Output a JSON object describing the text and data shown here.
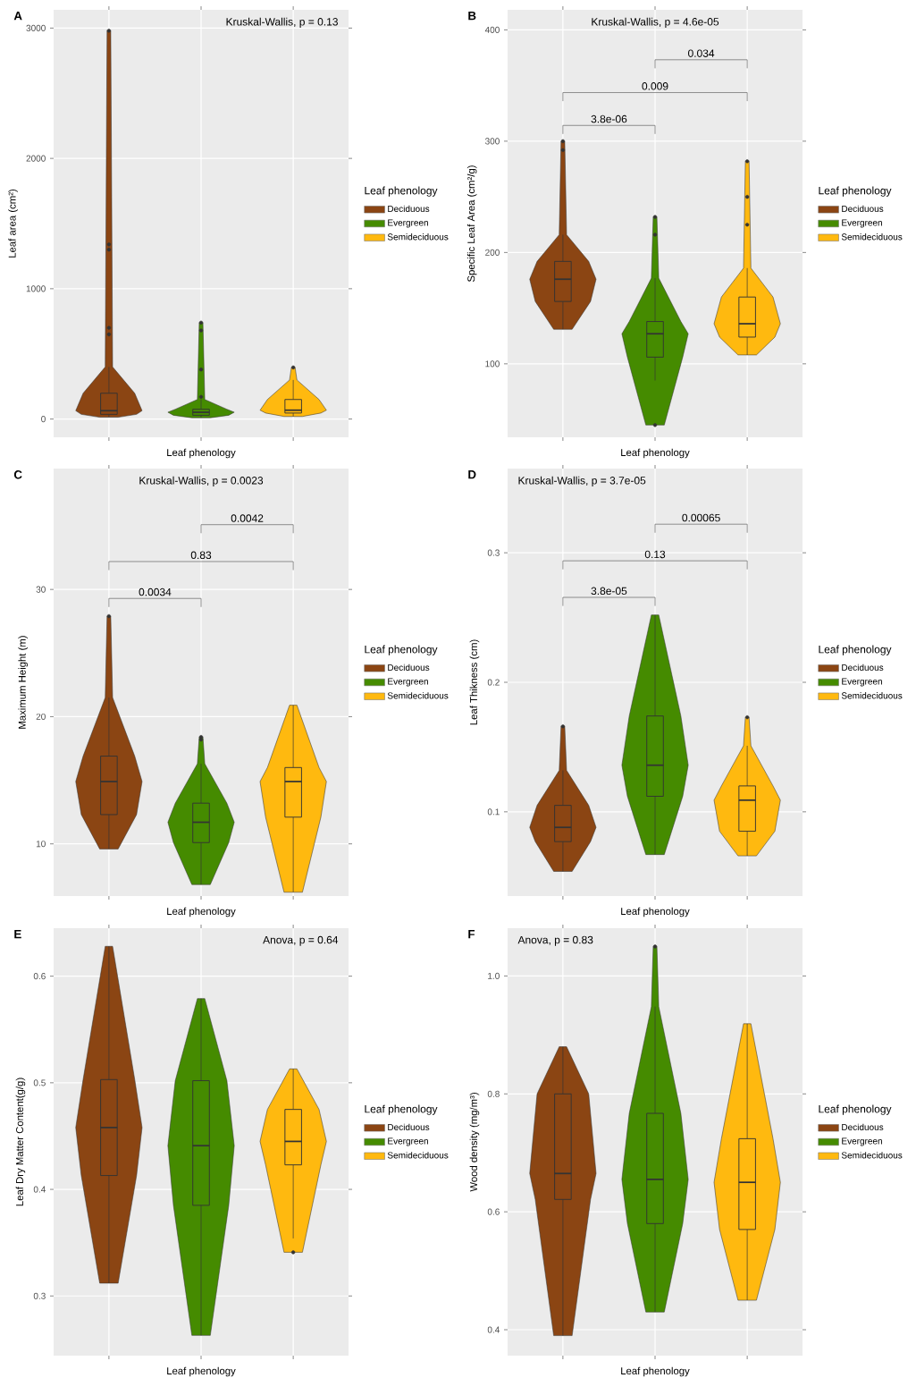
{
  "chart_data": [
    {
      "type": "box",
      "title": "A",
      "xlabel": "Leaf phenology",
      "ylabel": "Leaf area (cm²)",
      "categories": [
        null,
        null,
        null
      ],
      "legend": "right",
      "legend_title": "Leaf phenology",
      "grid": true,
      "tick_labels": "y",
      "ylim": [
        -140,
        3140
      ],
      "yticks": [
        0,
        1000,
        2000,
        3000
      ],
      "series": [
        {
          "name": "Deciduous",
          "color": "#8B4513",
          "boxes": [
            {
              "low": 14,
              "q1": 36,
              "median": 64,
              "q3": 198,
              "high": 400,
              "outliers": [
                650,
                700,
                1300,
                1340,
                2980
              ]
            },
            null,
            null
          ]
        },
        {
          "name": "Evergreen",
          "color": "#458B00",
          "boxes": [
            null,
            {
              "low": 10,
              "q1": 29,
              "median": 52,
              "q3": 75,
              "high": 150,
              "outliers": [
                170,
                380,
                680,
                740
              ]
            },
            null
          ]
        },
        {
          "name": "Semideciduous",
          "color": "#FFB90F",
          "boxes": [
            null,
            null,
            {
              "low": 20,
              "q1": 46,
              "median": 68,
              "q3": 150,
              "high": 300,
              "outliers": [
                396
              ]
            }
          ]
        }
      ],
      "annotations": [
        "Kruskal-Wallis, p = 0.13"
      ]
    },
    {
      "type": "box",
      "title": "B",
      "xlabel": "Leaf phenology",
      "ylabel": "Specific Leaf Area (cm²/g)",
      "categories": [
        null,
        null,
        null
      ],
      "legend": "right",
      "legend_title": "Leaf phenology",
      "grid": true,
      "tick_labels": "y",
      "ylim": [
        34,
        418
      ],
      "yticks": [
        100,
        200,
        300,
        400
      ],
      "series": [
        {
          "name": "Deciduous",
          "color": "#8B4513",
          "boxes": [
            {
              "low": 131,
              "q1": 156,
              "median": 176,
              "q3": 192,
              "high": 216,
              "outliers": [
                292,
                300
              ]
            },
            null,
            null
          ]
        },
        {
          "name": "Evergreen",
          "color": "#458B00",
          "boxes": [
            null,
            {
              "low": 85,
              "q1": 106,
              "median": 127,
              "q3": 138,
              "high": 177,
              "outliers": [
                45,
                216,
                232
              ]
            },
            null
          ]
        },
        {
          "name": "Semideciduous",
          "color": "#FFB90F",
          "boxes": [
            null,
            null,
            {
              "low": 108,
              "q1": 124,
              "median": 136,
              "q3": 160,
              "high": 186,
              "outliers": [
                225,
                250,
                282
              ]
            }
          ]
        }
      ],
      "annotations": [
        "Kruskal-Wallis, p = 4.6e-05",
        "3.8e-06",
        "0.009",
        "0.034"
      ]
    },
    {
      "type": "box",
      "title": "C",
      "xlabel": "Leaf phenology",
      "ylabel": "Maximum Height (m)",
      "categories": [
        null,
        null,
        null
      ],
      "legend": "right",
      "legend_title": "Leaf phenology",
      "grid": true,
      "tick_labels": "y",
      "ylim": [
        5.9,
        39.5
      ],
      "yticks": [
        10,
        20,
        30
      ],
      "series": [
        {
          "name": "Deciduous",
          "color": "#8B4513",
          "boxes": [
            {
              "low": 9.6,
              "q1": 12.3,
              "median": 14.9,
              "q3": 16.9,
              "high": 21.5,
              "outliers": [
                27.9
              ]
            },
            null,
            null
          ]
        },
        {
          "name": "Evergreen",
          "color": "#458B00",
          "boxes": [
            null,
            {
              "low": 6.8,
              "q1": 10.1,
              "median": 11.7,
              "q3": 13.2,
              "high": 16.3,
              "outliers": [
                18.2,
                18.4
              ]
            },
            null
          ]
        },
        {
          "name": "Semideciduous",
          "color": "#FFB90F",
          "boxes": [
            null,
            null,
            {
              "low": 6.2,
              "q1": 12.1,
              "median": 14.9,
              "q3": 16.0,
              "high": 20.9
            }
          ]
        }
      ],
      "annotations": [
        "Kruskal-Wallis, p = 0.0023",
        "0.0034",
        "0.83",
        "0.0042"
      ]
    },
    {
      "type": "box",
      "title": "D",
      "xlabel": "Leaf phenology",
      "ylabel": "Leaf Thikness (cm)",
      "categories": [
        null,
        null,
        null
      ],
      "legend": "right",
      "legend_title": "Leaf phenology",
      "grid": true,
      "tick_labels": "y",
      "ylim": [
        0.035,
        0.365
      ],
      "yticks": [
        0.1,
        0.2,
        0.3
      ],
      "series": [
        {
          "name": "Deciduous",
          "color": "#8B4513",
          "boxes": [
            {
              "low": 0.054,
              "q1": 0.077,
              "median": 0.088,
              "q3": 0.105,
              "high": 0.132,
              "outliers": [
                0.166
              ]
            },
            null,
            null
          ]
        },
        {
          "name": "Evergreen",
          "color": "#458B00",
          "boxes": [
            null,
            {
              "low": 0.067,
              "q1": 0.112,
              "median": 0.136,
              "q3": 0.174,
              "high": 0.252
            },
            null
          ]
        },
        {
          "name": "Semideciduous",
          "color": "#FFB90F",
          "boxes": [
            null,
            null,
            {
              "low": 0.066,
              "q1": 0.085,
              "median": 0.109,
              "q3": 0.12,
              "high": 0.151,
              "outliers": [
                0.173
              ]
            }
          ]
        }
      ],
      "annotations": [
        "Kruskal-Wallis, p = 3.7e-05",
        "3.8e-05",
        "0.13",
        "0.00065"
      ]
    },
    {
      "type": "box",
      "title": "E",
      "xlabel": "Leaf phenology",
      "ylabel": "Leaf Dry Matter Content(g/g)",
      "categories": [
        null,
        null,
        null
      ],
      "legend": "right",
      "legend_title": "Leaf phenology",
      "grid": true,
      "tick_labels": "y",
      "ylim": [
        0.244,
        0.645
      ],
      "yticks": [
        0.3,
        0.4,
        0.5,
        0.6
      ],
      "series": [
        {
          "name": "Deciduous",
          "color": "#8B4513",
          "boxes": [
            {
              "low": 0.312,
              "q1": 0.413,
              "median": 0.458,
              "q3": 0.503,
              "high": 0.628
            },
            null,
            null
          ]
        },
        {
          "name": "Evergreen",
          "color": "#458B00",
          "boxes": [
            null,
            {
              "low": 0.263,
              "q1": 0.385,
              "median": 0.441,
              "q3": 0.502,
              "high": 0.579
            },
            null
          ]
        },
        {
          "name": "Semideciduous",
          "color": "#FFB90F",
          "boxes": [
            null,
            null,
            {
              "low": 0.354,
              "q1": 0.423,
              "median": 0.445,
              "q3": 0.475,
              "high": 0.513,
              "outliers": [
                0.341
              ]
            }
          ]
        }
      ],
      "annotations": [
        "Anova, p = 0.64"
      ]
    },
    {
      "type": "box",
      "title": "F",
      "xlabel": "Leaf phenology",
      "ylabel": "Wood density (mg/m³)",
      "categories": [
        null,
        null,
        null
      ],
      "legend": "right",
      "legend_title": "Leaf phenology",
      "grid": true,
      "tick_labels": "y",
      "ylim": [
        0.356,
        1.081
      ],
      "yticks": [
        0.4,
        0.6,
        0.8,
        {
          "value": 1,
          "label": "1.0"
        }
      ],
      "series": [
        {
          "name": "Deciduous",
          "color": "#8B4513",
          "boxes": [
            {
              "low": 0.39,
              "q1": 0.621,
              "median": 0.665,
              "q3": 0.8,
              "high": 0.88
            },
            null,
            null
          ]
        },
        {
          "name": "Evergreen",
          "color": "#458B00",
          "boxes": [
            null,
            {
              "low": 0.43,
              "q1": 0.58,
              "median": 0.655,
              "q3": 0.767,
              "high": 0.948,
              "outliers": [
                1.05
              ]
            },
            null
          ]
        },
        {
          "name": "Semideciduous",
          "color": "#FFB90F",
          "boxes": [
            null,
            null,
            {
              "low": 0.45,
              "q1": 0.57,
              "median": 0.65,
              "q3": 0.724,
              "high": 0.919
            }
          ]
        }
      ],
      "annotations": [
        "Anova, p = 0.83"
      ]
    }
  ]
}
